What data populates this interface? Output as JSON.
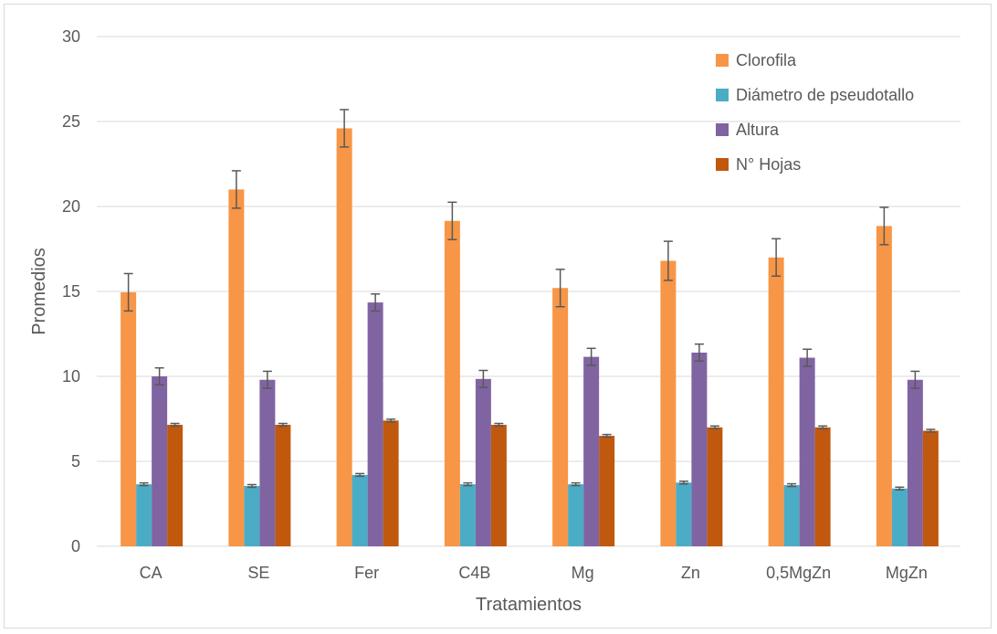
{
  "chart_data": {
    "type": "bar",
    "title": "",
    "xlabel": "Tratamientos",
    "ylabel": "Promedios",
    "ylim": [
      0,
      30
    ],
    "yticks": [
      0,
      5,
      10,
      15,
      20,
      25,
      30
    ],
    "grid": true,
    "legend_position": "top-right",
    "categories": [
      "CA",
      "SE",
      "Fer",
      "C4B",
      "Mg",
      "Zn",
      "0,5MgZn",
      "MgZn"
    ],
    "series": [
      {
        "name": "Clorofila",
        "color": "#F79646",
        "values": [
          14.95,
          21.0,
          24.6,
          19.15,
          15.2,
          16.8,
          17.0,
          18.85
        ],
        "errors": [
          1.1,
          1.1,
          1.1,
          1.1,
          1.1,
          1.15,
          1.1,
          1.1
        ]
      },
      {
        "name": "Diámetro de pseudotallo",
        "color": "#4BACC6",
        "values": [
          3.65,
          3.55,
          4.2,
          3.65,
          3.65,
          3.75,
          3.6,
          3.4
        ],
        "errors": [
          0.08,
          0.08,
          0.08,
          0.08,
          0.08,
          0.08,
          0.08,
          0.08
        ]
      },
      {
        "name": "Altura",
        "color": "#8064A2",
        "values": [
          10.0,
          9.8,
          14.35,
          9.85,
          11.15,
          11.4,
          11.1,
          9.8
        ],
        "errors": [
          0.5,
          0.5,
          0.5,
          0.5,
          0.5,
          0.5,
          0.5,
          0.5
        ]
      },
      {
        "name": "N° Hojas",
        "color": "#C0580E",
        "values": [
          7.15,
          7.15,
          7.4,
          7.15,
          6.5,
          7.0,
          7.0,
          6.8
        ],
        "errors": [
          0.08,
          0.08,
          0.08,
          0.08,
          0.08,
          0.08,
          0.08,
          0.08
        ]
      }
    ]
  }
}
